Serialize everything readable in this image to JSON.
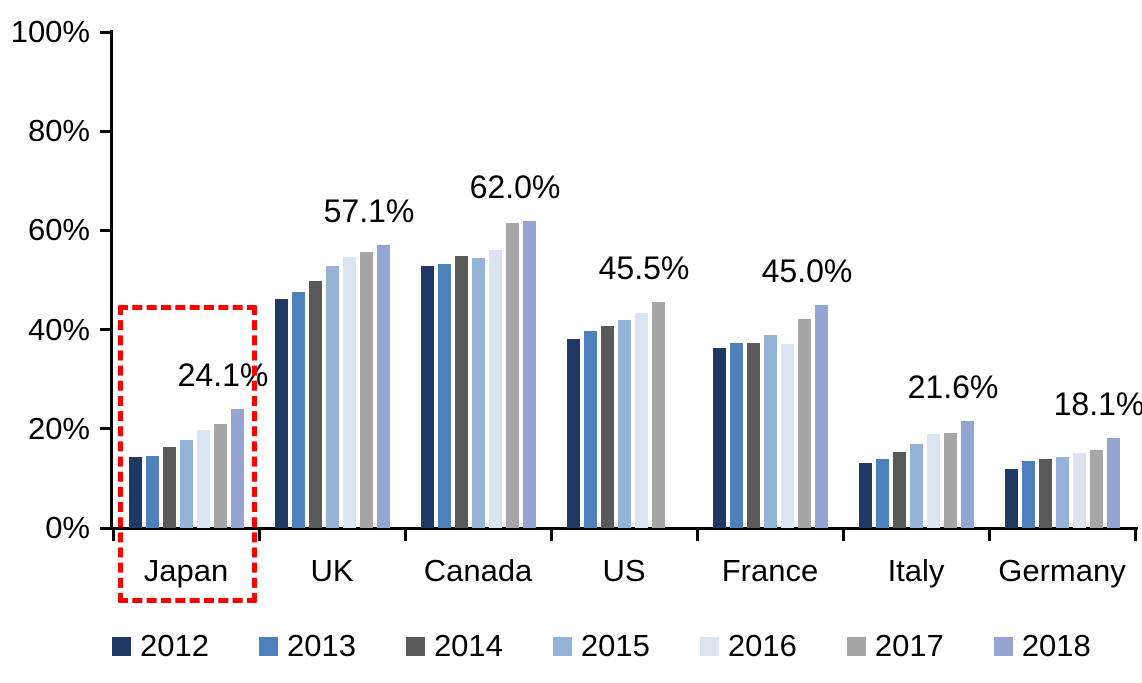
{
  "chart_data": {
    "type": "bar",
    "title": "",
    "xlabel": "",
    "ylabel": "",
    "categories": [
      "Japan",
      "UK",
      "Canada",
      "US",
      "France",
      "Italy",
      "Germany"
    ],
    "series": [
      {
        "name": "2012",
        "color": "#1F3864",
        "values": [
          14.4,
          46.2,
          52.9,
          38.1,
          36.3,
          13.1,
          12.0
        ]
      },
      {
        "name": "2013",
        "color": "#4E80BC",
        "values": [
          14.6,
          47.6,
          53.3,
          39.8,
          37.3,
          13.9,
          13.6
        ]
      },
      {
        "name": "2014",
        "color": "#595959",
        "values": [
          16.3,
          49.8,
          54.8,
          40.8,
          37.3,
          15.3,
          14.0
        ]
      },
      {
        "name": "2015",
        "color": "#95B3D7",
        "values": [
          17.7,
          52.9,
          54.4,
          41.9,
          38.9,
          16.9,
          14.4
        ]
      },
      {
        "name": "2016",
        "color": "#DBE5F1",
        "values": [
          19.7,
          54.6,
          56.1,
          43.4,
          37.1,
          19.0,
          15.2
        ]
      },
      {
        "name": "2017",
        "color": "#A6A6A6",
        "values": [
          20.9,
          55.7,
          61.5,
          45.5,
          42.2,
          19.2,
          15.7
        ]
      },
      {
        "name": "2018",
        "color": "#95A5D2",
        "values": [
          24.1,
          57.1,
          62.0,
          null,
          45.0,
          21.6,
          18.1
        ]
      }
    ],
    "data_labels": [
      "24.1%",
      "57.1%",
      "62.0%",
      "45.5%",
      "45.0%",
      "21.6%",
      "18.1%"
    ],
    "y_ticks": [
      "0%",
      "20%",
      "40%",
      "60%",
      "80%",
      "100%"
    ],
    "ylim": [
      0,
      100
    ],
    "grid": false,
    "legend_position": "bottom",
    "legend_entries": [
      "2012",
      "2013",
      "2014",
      "2015",
      "2016",
      "2017",
      "2018"
    ],
    "annotations": {
      "highlight": {
        "target_category": "Japan",
        "shape": "dashed-rectangle",
        "color": "#FF0000"
      }
    },
    "axis_color": "#000000",
    "text_color": "#000000"
  }
}
